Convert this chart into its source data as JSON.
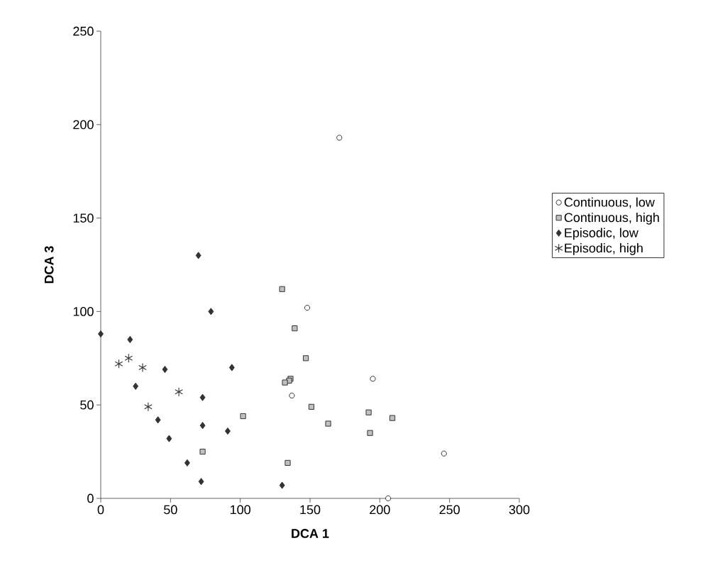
{
  "chart_data": {
    "type": "scatter",
    "xlabel": "DCA 1",
    "ylabel": "DCA 3",
    "xlim": [
      0,
      300
    ],
    "ylim": [
      0,
      250
    ],
    "xticks": [
      0,
      50,
      100,
      150,
      200,
      250,
      300
    ],
    "yticks": [
      0,
      50,
      100,
      150,
      200,
      250
    ],
    "grid": false,
    "legend": "right",
    "series": [
      {
        "name": "Continuous, low",
        "color": "#ffffff",
        "marker": "circle",
        "x": [
          171,
          148,
          137,
          195,
          206,
          246
        ],
        "values": [
          193,
          102,
          55,
          64,
          0,
          24
        ]
      },
      {
        "name": "Continuous, high",
        "color": "#c0c0c0",
        "marker": "square",
        "x": [
          130,
          139,
          147,
          136,
          135,
          132,
          151,
          163,
          192,
          193,
          209,
          102,
          73,
          134
        ],
        "values": [
          112,
          91,
          75,
          64,
          63,
          62,
          49,
          40,
          46,
          35,
          43,
          44,
          25,
          19
        ]
      },
      {
        "name": "Episodic, low",
        "color": "#333333",
        "marker": "diamond",
        "x": [
          0,
          21,
          70,
          79,
          94,
          46,
          25,
          73,
          41,
          73,
          91,
          49,
          62,
          72,
          130
        ],
        "values": [
          88,
          85,
          130,
          100,
          70,
          69,
          60,
          54,
          42,
          39,
          36,
          32,
          19,
          9,
          7
        ]
      },
      {
        "name": "Episodic, high",
        "color": "#333333",
        "marker": "cross",
        "x": [
          13,
          20,
          30,
          56,
          34
        ],
        "values": [
          72,
          75,
          70,
          57,
          49
        ]
      }
    ]
  }
}
